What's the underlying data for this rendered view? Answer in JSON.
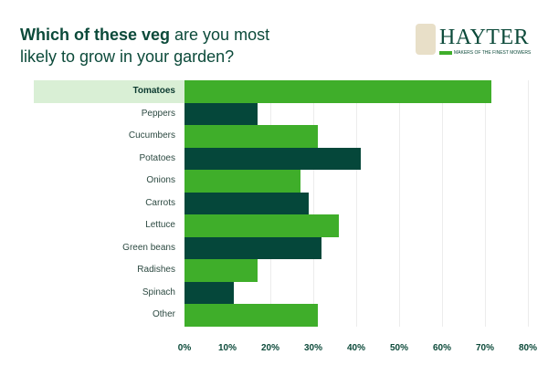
{
  "header": {
    "title_bold": "Which of these veg",
    "title_rest": " are you most likely to grow in your garden?"
  },
  "logo": {
    "brand": "HAYTER",
    "tagline": "MAKERS OF THE FINEST MOWERS",
    "crest_icon": "royal-warrant-crest-icon"
  },
  "colors": {
    "light_green": "#3fae2a",
    "dark_green": "#05473a",
    "highlight": "#d9efd5",
    "title": "#0c4a3a"
  },
  "chart_data": {
    "type": "bar",
    "orientation": "horizontal",
    "title": "Which of these veg are you most likely to grow in your garden?",
    "xlabel": "",
    "ylabel": "",
    "categories": [
      "Tomatoes",
      "Peppers",
      "Cucumbers",
      "Potatoes",
      "Onions",
      "Carrots",
      "Lettuce",
      "Green beans",
      "Radishes",
      "Spinach",
      "Other"
    ],
    "values": [
      71.5,
      17,
      31,
      41,
      27,
      29,
      36,
      32,
      17,
      11.5,
      31
    ],
    "xlim": [
      0,
      80
    ],
    "x_ticks": [
      "0%",
      "10%",
      "20%",
      "30%",
      "40%",
      "50%",
      "60%",
      "70%",
      "80%"
    ],
    "grid": true,
    "highlighted_category": "Tomatoes"
  }
}
